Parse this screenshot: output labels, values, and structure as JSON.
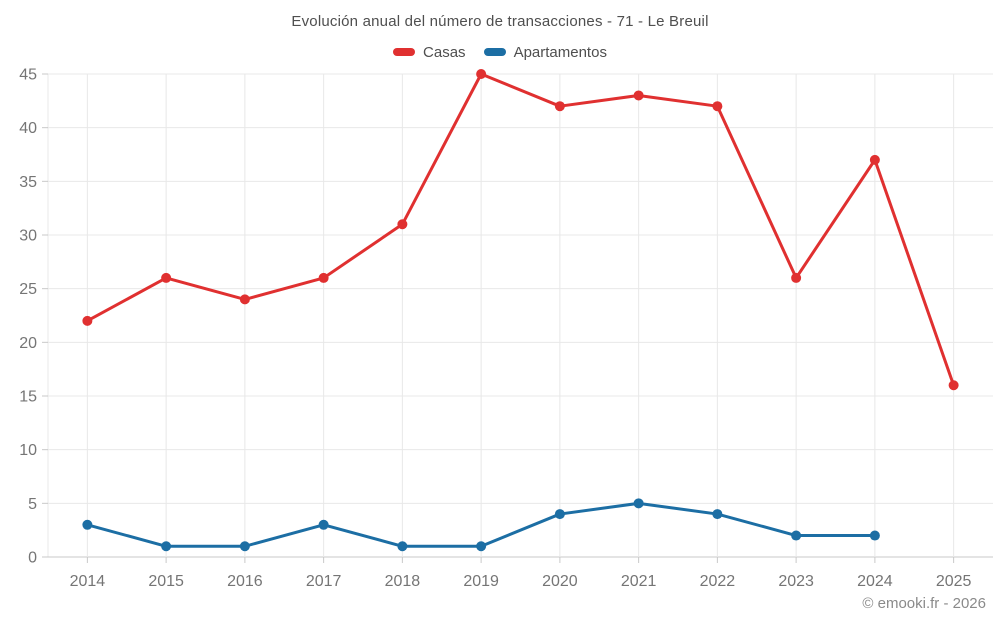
{
  "title": "Evolución anual del número de transacciones - 71 - Le Breuil",
  "footer": "© emooki.fr - 2026",
  "colors": {
    "casas": "#e03030",
    "apartamentos": "#1c6ea4",
    "grid": "#e8e8e8",
    "axis": "#c9c9c9",
    "tick": "#c9c9c9",
    "axis_label": "#757575",
    "title_text": "#4f4f4f",
    "footer_text": "#8a8a8a"
  },
  "chart_data": {
    "type": "line",
    "title": "Evolución anual del número de transacciones - 71 - Le Breuil",
    "categories": [
      "2014",
      "2015",
      "2016",
      "2017",
      "2018",
      "2019",
      "2020",
      "2021",
      "2022",
      "2023",
      "2024",
      "2025"
    ],
    "series": [
      {
        "name": "Casas",
        "color": "#e03030",
        "values": [
          22,
          26,
          24,
          26,
          31,
          45,
          42,
          43,
          42,
          26,
          37,
          16
        ]
      },
      {
        "name": "Apartamentos",
        "color": "#1c6ea4",
        "values": [
          3,
          1,
          1,
          3,
          1,
          1,
          4,
          5,
          4,
          2,
          2,
          null
        ]
      }
    ],
    "xlabel": "",
    "ylabel": "",
    "ylim": [
      0,
      45
    ],
    "ytick_step": 5,
    "grid": true,
    "legend_position": "top",
    "marker_radius": 5,
    "line_width": 3
  }
}
